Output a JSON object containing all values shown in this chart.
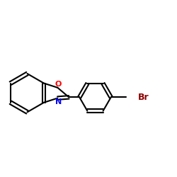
{
  "background_color": "#ffffff",
  "bond_color": "#000000",
  "atom_colors": {
    "O": "#ff0000",
    "N": "#0000ff",
    "Br": "#8b0000",
    "C": "#000000"
  },
  "figsize": [
    2.5,
    2.5
  ],
  "dpi": 100
}
